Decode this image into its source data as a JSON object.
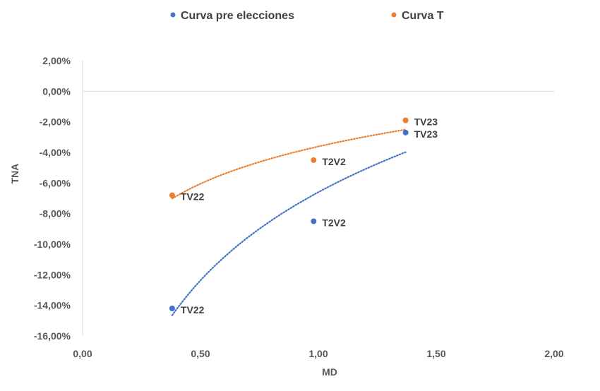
{
  "chart_data": {
    "type": "scatter",
    "title": "",
    "xlabel": "MD",
    "ylabel": "TNA",
    "xlim": [
      0,
      2
    ],
    "ylim": [
      -0.16,
      0.02
    ],
    "x_ticks": [
      0,
      0.5,
      1,
      1.5,
      2
    ],
    "y_ticks": [
      0.02,
      0,
      -0.02,
      -0.04,
      -0.06,
      -0.08,
      -0.1,
      -0.12,
      -0.14,
      -0.16
    ],
    "x_tick_labels": [
      "0,00",
      "0,50",
      "1,00",
      "1,50",
      "2,00"
    ],
    "y_tick_labels": [
      "2,00%",
      "0,00%",
      "-2,00%",
      "-4,00%",
      "-6,00%",
      "-8,00%",
      "-10,00%",
      "-12,00%",
      "-14,00%",
      "-16,00%"
    ],
    "grid": false,
    "legend_position": "top",
    "series": [
      {
        "name": "Curva pre elecciones",
        "color": "#4472C4",
        "points": [
          {
            "x": 0.38,
            "y": -0.142,
            "label": "TV22"
          },
          {
            "x": 0.98,
            "y": -0.085,
            "label": "T2V2"
          },
          {
            "x": 1.37,
            "y": -0.027,
            "label": "TV23"
          }
        ],
        "trendline": "logarithmic"
      },
      {
        "name": "Curva T",
        "color": "#ED7D31",
        "points": [
          {
            "x": 0.38,
            "y": -0.068,
            "label": "TV22"
          },
          {
            "x": 0.98,
            "y": -0.045,
            "label": "T2V2"
          },
          {
            "x": 1.37,
            "y": -0.019,
            "label": "TV23"
          }
        ],
        "trendline": "logarithmic"
      }
    ]
  }
}
